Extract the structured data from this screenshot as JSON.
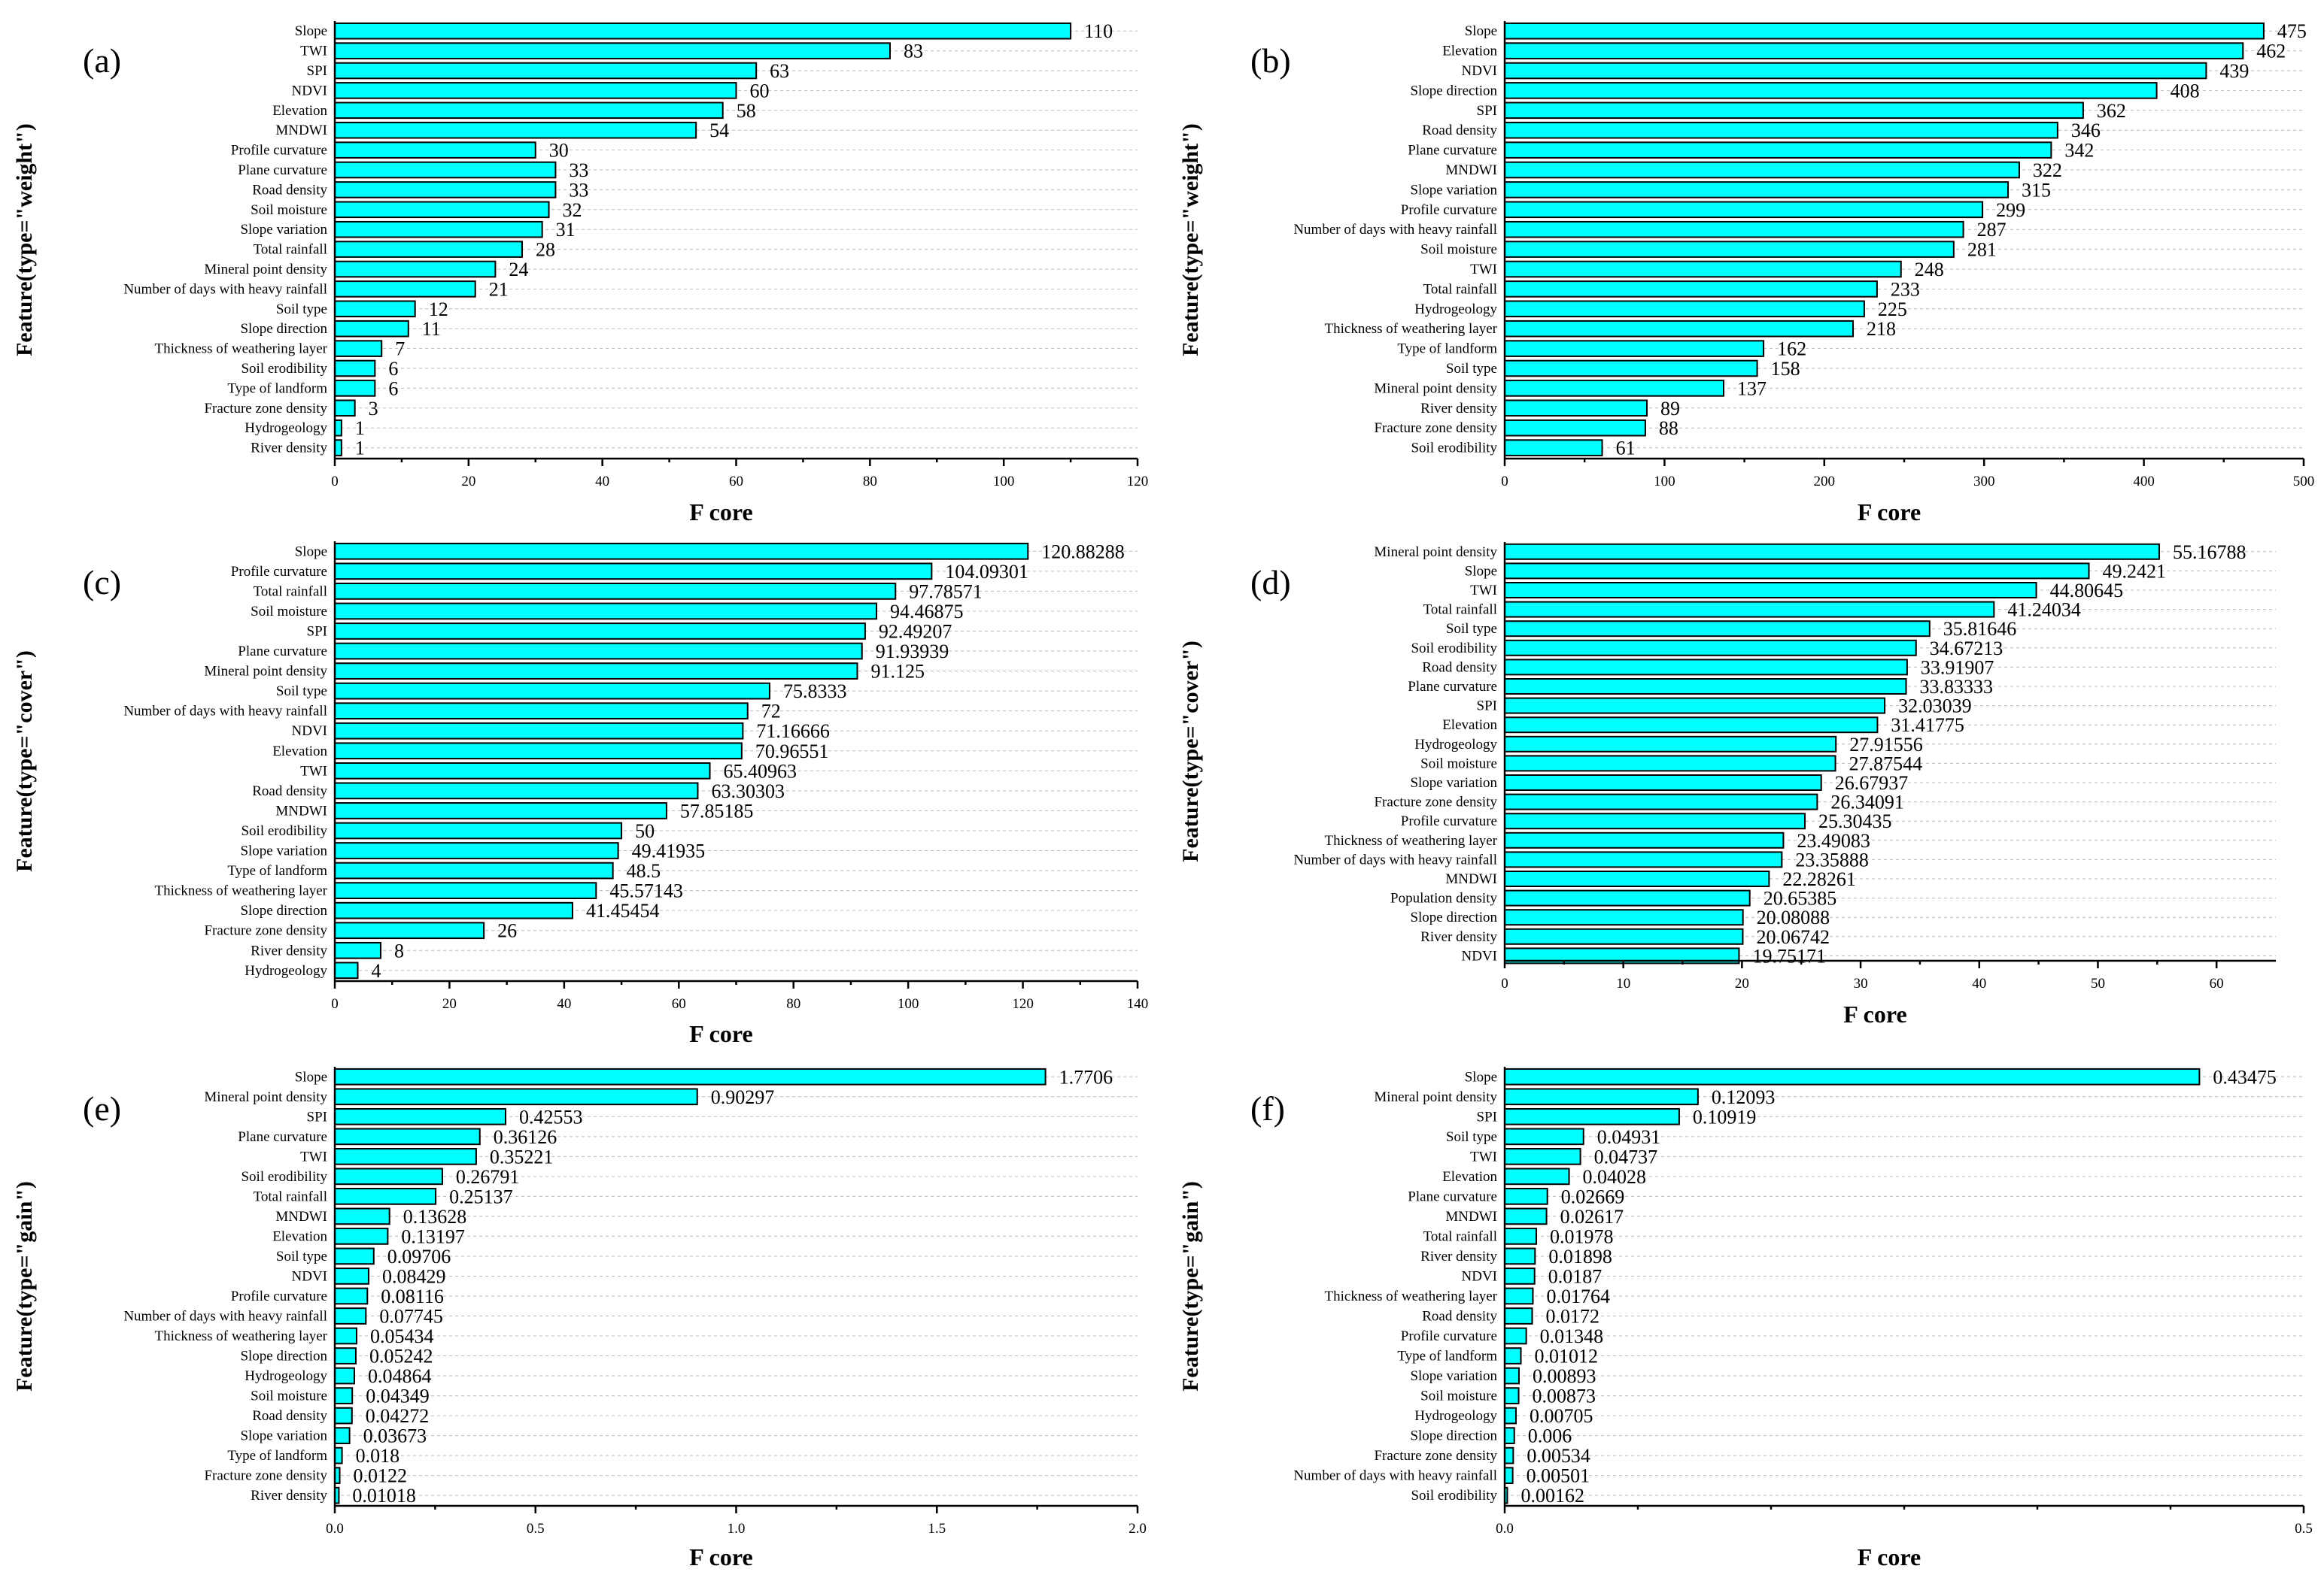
{
  "chart_data": [
    {
      "type": "bar",
      "orientation": "horizontal",
      "panel_label": "(a)",
      "xlabel": "F core",
      "ylabel": "Feature(type=\"weight\")",
      "xlim": [
        0,
        120
      ],
      "xticks": [
        "0",
        "20",
        "40",
        "60",
        "80",
        "100",
        "120"
      ],
      "categories": [
        "Slope",
        "TWI",
        "SPI",
        "NDVI",
        "Elevation",
        "MNDWI",
        "Profile curvature",
        "Plane curvature",
        "Road density",
        "Soil moisture",
        "Slope variation",
        "Total rainfall",
        "Mineral point density",
        "Number of days with heavy rainfall",
        "Soil type",
        "Slope direction",
        "Thickness of weathering layer",
        "Soil erodibility",
        "Type of landform",
        "Fracture zone density",
        "Hydrogeology",
        "River density"
      ],
      "values": [
        110,
        83,
        63,
        60,
        58,
        54,
        30,
        33,
        33,
        32,
        31,
        28,
        24,
        21,
        12,
        11,
        7,
        6,
        6,
        3,
        1,
        1
      ],
      "value_labels": [
        "110",
        "83",
        "63",
        "60",
        "58",
        "54",
        "30",
        "33",
        "33",
        "32",
        "31",
        "28",
        "24",
        "21",
        "12",
        "11",
        "7",
        "6",
        "6",
        "3",
        "1",
        "1"
      ]
    },
    {
      "type": "bar",
      "orientation": "horizontal",
      "panel_label": "(b)",
      "xlabel": "F core",
      "ylabel": "Feature(type=\"weight\")",
      "xlim": [
        0,
        500
      ],
      "xticks": [
        "0",
        "100",
        "200",
        "300",
        "400",
        "500"
      ],
      "categories": [
        "Slope",
        "Elevation",
        "NDVI",
        "Slope direction",
        "SPI",
        "Road density",
        "Plane curvature",
        "MNDWI",
        "Slope variation",
        "Profile curvature",
        "Number of days with heavy rainfall",
        "Soil moisture",
        "TWI",
        "Total rainfall",
        "Hydrogeology",
        "Thickness of weathering layer",
        "Type of landform",
        "Soil type",
        "Mineral point density",
        "River density",
        "Fracture zone density",
        "Soil erodibility"
      ],
      "values": [
        475,
        462,
        439,
        408,
        362,
        346,
        342,
        322,
        315,
        299,
        287,
        281,
        248,
        233,
        225,
        218,
        162,
        158,
        137,
        89,
        88,
        61
      ],
      "value_labels": [
        "475",
        "462",
        "439",
        "408",
        "362",
        "346",
        "342",
        "322",
        "315",
        "299",
        "287",
        "281",
        "248",
        "233",
        "225",
        "218",
        "162",
        "158",
        "137",
        "89",
        "88",
        "61"
      ]
    },
    {
      "type": "bar",
      "orientation": "horizontal",
      "panel_label": "(c)",
      "xlabel": "F core",
      "ylabel": "Feature(type=\"cover\")",
      "xlim": [
        0,
        140
      ],
      "xticks": [
        "0",
        "20",
        "40",
        "60",
        "80",
        "100",
        "120",
        "140"
      ],
      "categories": [
        "Slope",
        "Profile curvature",
        "Total rainfall",
        "Soil moisture",
        "SPI",
        "Plane curvature",
        "Mineral point density",
        "Soil type",
        "Number of days with heavy rainfall",
        "NDVI",
        "Elevation",
        "TWI",
        "Road density",
        "MNDWI",
        "Soil erodibility",
        "Slope variation",
        "Type of landform",
        "Thickness of weathering layer",
        "Slope direction",
        "Fracture zone density",
        "River density",
        "Hydrogeology"
      ],
      "values": [
        120.88288,
        104.09301,
        97.78571,
        94.46875,
        92.49207,
        91.93939,
        91.125,
        75.8333,
        72,
        71.16666,
        70.96551,
        65.40963,
        63.30303,
        57.85185,
        50,
        49.41935,
        48.5,
        45.57143,
        41.45454,
        26,
        8,
        4
      ],
      "value_labels": [
        "120.88288",
        "104.09301",
        "97.78571",
        "94.46875",
        "92.49207",
        "91.93939",
        "91.125",
        "75.8333",
        "72",
        "71.16666",
        "70.96551",
        "65.40963",
        "63.30303",
        "57.85185",
        "50",
        "49.41935",
        "48.5",
        "45.57143",
        "41.45454",
        "26",
        "8",
        "4"
      ]
    },
    {
      "type": "bar",
      "orientation": "horizontal",
      "panel_label": "(d)",
      "xlabel": "F core",
      "ylabel": "Feature(type=\"cover\")",
      "xlim": [
        0,
        65
      ],
      "xticks": [
        "0",
        "10",
        "20",
        "30",
        "40",
        "50",
        "60"
      ],
      "categories": [
        "Mineral point density",
        "Slope",
        "TWI",
        "Total rainfall",
        "Soil type",
        "Soil erodibility",
        "Road density",
        "Plane curvature",
        "SPI",
        "Elevation",
        "Hydrogeology",
        "Soil moisture",
        "Slope variation",
        "Fracture zone density",
        "Profile curvature",
        "Thickness of weathering layer",
        "Number of days with heavy rainfall",
        "MNDWI",
        "Population density",
        "Slope direction",
        "River density",
        "NDVI"
      ],
      "values": [
        55.16788,
        49.2421,
        44.80645,
        41.24034,
        35.81646,
        34.67213,
        33.91907,
        33.83333,
        32.03039,
        31.41775,
        27.91556,
        27.87544,
        26.67937,
        26.34091,
        25.30435,
        23.49083,
        23.35888,
        22.28261,
        20.65385,
        20.08088,
        20.06742,
        19.75171
      ],
      "value_labels": [
        "55.16788",
        "49.2421",
        "44.80645",
        "41.24034",
        "35.81646",
        "34.67213",
        "33.91907",
        "33.83333",
        "32.03039",
        "31.41775",
        "27.91556",
        "27.87544",
        "26.67937",
        "26.34091",
        "25.30435",
        "23.49083",
        "23.35888",
        "22.28261",
        "20.65385",
        "20.08088",
        "20.06742",
        "19.75171"
      ]
    },
    {
      "type": "bar",
      "orientation": "horizontal",
      "panel_label": "(e)",
      "xlabel": "F core",
      "ylabel": "Feature(type=\"gain\")",
      "xlim": [
        0,
        2.0
      ],
      "xticks": [
        "0.0",
        "0.5",
        "1.0",
        "1.5",
        "2.0"
      ],
      "categories": [
        "Slope",
        "Mineral point density",
        "SPI",
        "Plane curvature",
        "TWI",
        "Soil erodibility",
        "Total rainfall",
        "MNDWI",
        "Elevation",
        "Soil type",
        "NDVI",
        "Profile curvature",
        "Number of days with heavy rainfall",
        "Thickness of weathering layer",
        "Slope direction",
        "Hydrogeology",
        "Soil moisture",
        "Road density",
        "Slope variation",
        "Type of landform",
        "Fracture zone density",
        "River density"
      ],
      "values": [
        1.7706,
        0.90297,
        0.42553,
        0.36126,
        0.35221,
        0.26791,
        0.25137,
        0.13628,
        0.13197,
        0.09706,
        0.08429,
        0.08116,
        0.07745,
        0.05434,
        0.05242,
        0.04864,
        0.04349,
        0.04272,
        0.03673,
        0.018,
        0.0122,
        0.01018
      ],
      "value_labels": [
        "1.7706",
        "0.90297",
        "0.42553",
        "0.36126",
        "0.35221",
        "0.26791",
        "0.25137",
        "0.13628",
        "0.13197",
        "0.09706",
        "0.08429",
        "0.08116",
        "0.07745",
        "0.05434",
        "0.05242",
        "0.04864",
        "0.04349",
        "0.04272",
        "0.03673",
        "0.018",
        "0.0122",
        "0.01018"
      ]
    },
    {
      "type": "bar",
      "orientation": "horizontal",
      "panel_label": "(f)",
      "xlabel": "F core",
      "ylabel": "Feature(type=\"gain\")",
      "xlim": [
        0,
        0.5
      ],
      "xticks": [
        "0.0",
        "0.5"
      ],
      "categories": [
        "Slope",
        "Mineral point density",
        "SPI",
        "Soil type",
        "TWI",
        "Elevation",
        "Plane curvature",
        "MNDWI",
        "Total rainfall",
        "River density",
        "NDVI",
        "Thickness of weathering layer",
        "Road density",
        "Profile curvature",
        "Type of landform",
        "Slope variation",
        "Soil moisture",
        "Hydrogeology",
        "Slope direction",
        "Fracture zone density",
        "Number of days with heavy rainfall",
        "Soil erodibility"
      ],
      "values": [
        0.43475,
        0.12093,
        0.10919,
        0.04931,
        0.04737,
        0.04028,
        0.02669,
        0.02617,
        0.01978,
        0.01898,
        0.0187,
        0.01764,
        0.0172,
        0.01348,
        0.01012,
        0.00893,
        0.00873,
        0.00705,
        0.006,
        0.00534,
        0.00501,
        0.00162
      ],
      "value_labels": [
        "0.43475",
        "0.12093",
        "0.10919",
        "0.04931",
        "0.04737",
        "0.04028",
        "0.02669",
        "0.02617",
        "0.01978",
        "0.01898",
        "0.0187",
        "0.01764",
        "0.0172",
        "0.01348",
        "0.01012",
        "0.00893",
        "0.00873",
        "0.00705",
        "0.006",
        "0.00534",
        "0.00501",
        "0.00162"
      ]
    }
  ]
}
